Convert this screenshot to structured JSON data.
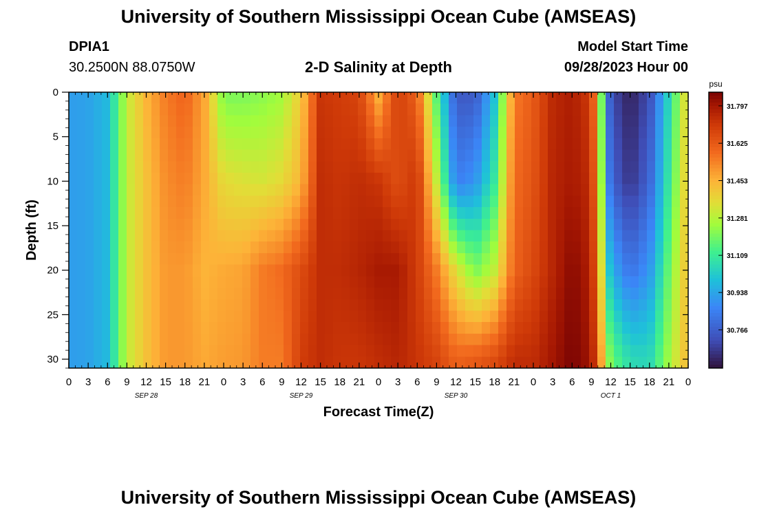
{
  "page": {
    "title": "University of Southern Mississippi Ocean Cube (AMSEAS)",
    "footer_title": "University of Southern Mississippi Ocean Cube (AMSEAS)"
  },
  "station": {
    "id": "DPIA1",
    "coords": "30.2500N  88.0750W"
  },
  "model": {
    "label": "Model Start Time",
    "start": "09/28/2023 Hour 00"
  },
  "chart_data": {
    "type": "heatmap",
    "title": "2-D Salinity at Depth",
    "xlabel": "Forecast Time(Z)",
    "ylabel": "Depth (ft)",
    "units": "psu",
    "xlim": [
      0,
      96
    ],
    "ylim": [
      31,
      0
    ],
    "x_tick_labels": [
      "0",
      "3",
      "6",
      "9",
      "12",
      "15",
      "18",
      "21",
      "0",
      "3",
      "6",
      "9",
      "12",
      "15",
      "18",
      "21",
      "0",
      "3",
      "6",
      "9",
      "12",
      "15",
      "18",
      "21",
      "0",
      "3",
      "6",
      "9",
      "12",
      "15",
      "18",
      "21",
      "0"
    ],
    "day_labels": [
      {
        "label": "SEP 28",
        "hour": 12
      },
      {
        "label": "SEP 29",
        "hour": 36
      },
      {
        "label": "SEP 30",
        "hour": 60
      },
      {
        "label": "OCT 1",
        "hour": 84
      }
    ],
    "y_ticks": [
      0,
      5,
      10,
      15,
      20,
      25,
      30
    ],
    "y_tick_labels": [
      "0",
      "5",
      "10",
      "15",
      "20",
      "25",
      "30"
    ],
    "colorbar": {
      "min": 30.59,
      "max": 31.86,
      "tick_values": [
        31.797,
        31.625,
        31.453,
        31.281,
        31.109,
        30.938,
        30.766
      ],
      "tick_labels": [
        "31.797",
        "31.625",
        "31.453",
        "31.281",
        "31.109",
        "30.938",
        "30.766"
      ]
    },
    "depth_levels": [
      0,
      10,
      20,
      30
    ],
    "time_hours": [
      0,
      3,
      6,
      9,
      12,
      15,
      18,
      21,
      24,
      27,
      30,
      33,
      36,
      39,
      42,
      45,
      48,
      51,
      54,
      57,
      60,
      63,
      66,
      69,
      72,
      75,
      78,
      81,
      84,
      87,
      90,
      93,
      96
    ],
    "salinity": [
      [
        30.92,
        30.93,
        30.98,
        31.3,
        31.45,
        31.55,
        31.6,
        31.48,
        31.2,
        31.2,
        31.22,
        31.25,
        31.4,
        31.72,
        31.7,
        31.68,
        31.45,
        31.7,
        31.6,
        31.15,
        30.75,
        30.75,
        31.0,
        31.55,
        31.62,
        31.75,
        31.78,
        31.7,
        30.72,
        30.62,
        30.72,
        31.05,
        31.4
      ],
      [
        30.92,
        30.93,
        30.98,
        31.3,
        31.42,
        31.52,
        31.55,
        31.47,
        31.36,
        31.34,
        31.33,
        31.36,
        31.45,
        31.74,
        31.72,
        31.74,
        31.72,
        31.65,
        31.72,
        31.3,
        30.85,
        30.9,
        31.1,
        31.58,
        31.64,
        31.76,
        31.79,
        31.74,
        30.78,
        30.66,
        30.78,
        31.1,
        31.42
      ],
      [
        30.92,
        30.93,
        30.98,
        31.3,
        31.42,
        31.5,
        31.5,
        31.45,
        31.47,
        31.48,
        31.55,
        31.58,
        31.66,
        31.74,
        31.74,
        31.76,
        31.79,
        31.79,
        31.7,
        31.55,
        31.35,
        31.2,
        31.3,
        31.6,
        31.67,
        31.76,
        31.84,
        31.77,
        30.96,
        30.82,
        30.9,
        31.18,
        31.44
      ],
      [
        30.92,
        30.93,
        30.98,
        31.3,
        31.42,
        31.5,
        31.5,
        31.47,
        31.49,
        31.5,
        31.55,
        31.55,
        31.7,
        31.74,
        31.72,
        31.72,
        31.74,
        31.76,
        31.72,
        31.68,
        31.6,
        31.62,
        31.66,
        31.74,
        31.74,
        31.8,
        31.86,
        31.8,
        31.18,
        31.06,
        31.05,
        31.25,
        31.45
      ]
    ]
  }
}
